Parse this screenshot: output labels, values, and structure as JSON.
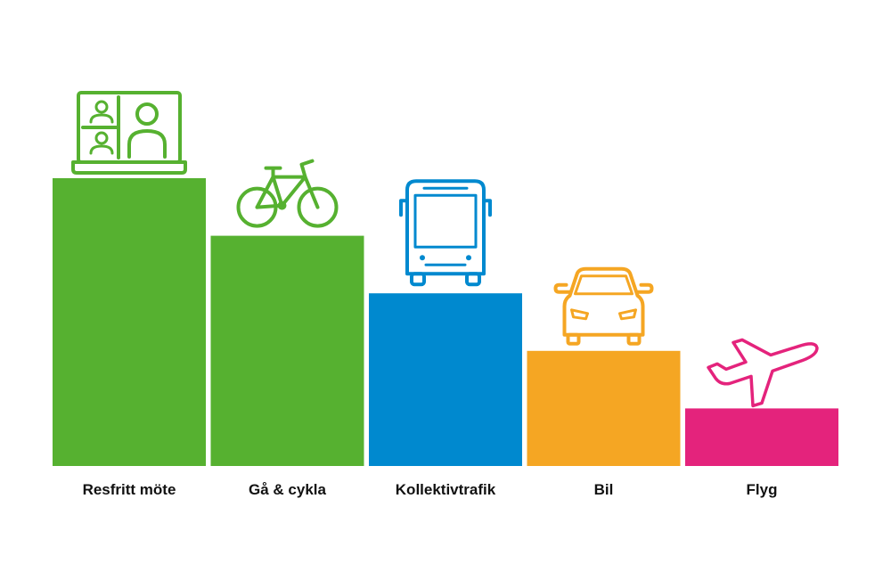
{
  "chart_data": {
    "type": "bar",
    "categories": [
      "Resfritt möte",
      "Gå & cykla",
      "Kollektivtrafik",
      "Bil",
      "Flyg"
    ],
    "values": [
      5,
      4,
      3,
      2,
      1
    ],
    "ylim": [
      0,
      5
    ],
    "grid": false,
    "legend": "none",
    "colors": [
      "#56B130",
      "#56B130",
      "#0089CF",
      "#F5A623",
      "#E4237C"
    ],
    "icons": [
      "video-meeting-laptop-icon",
      "bicycle-icon",
      "bus-icon",
      "car-icon",
      "airplane-icon"
    ]
  }
}
